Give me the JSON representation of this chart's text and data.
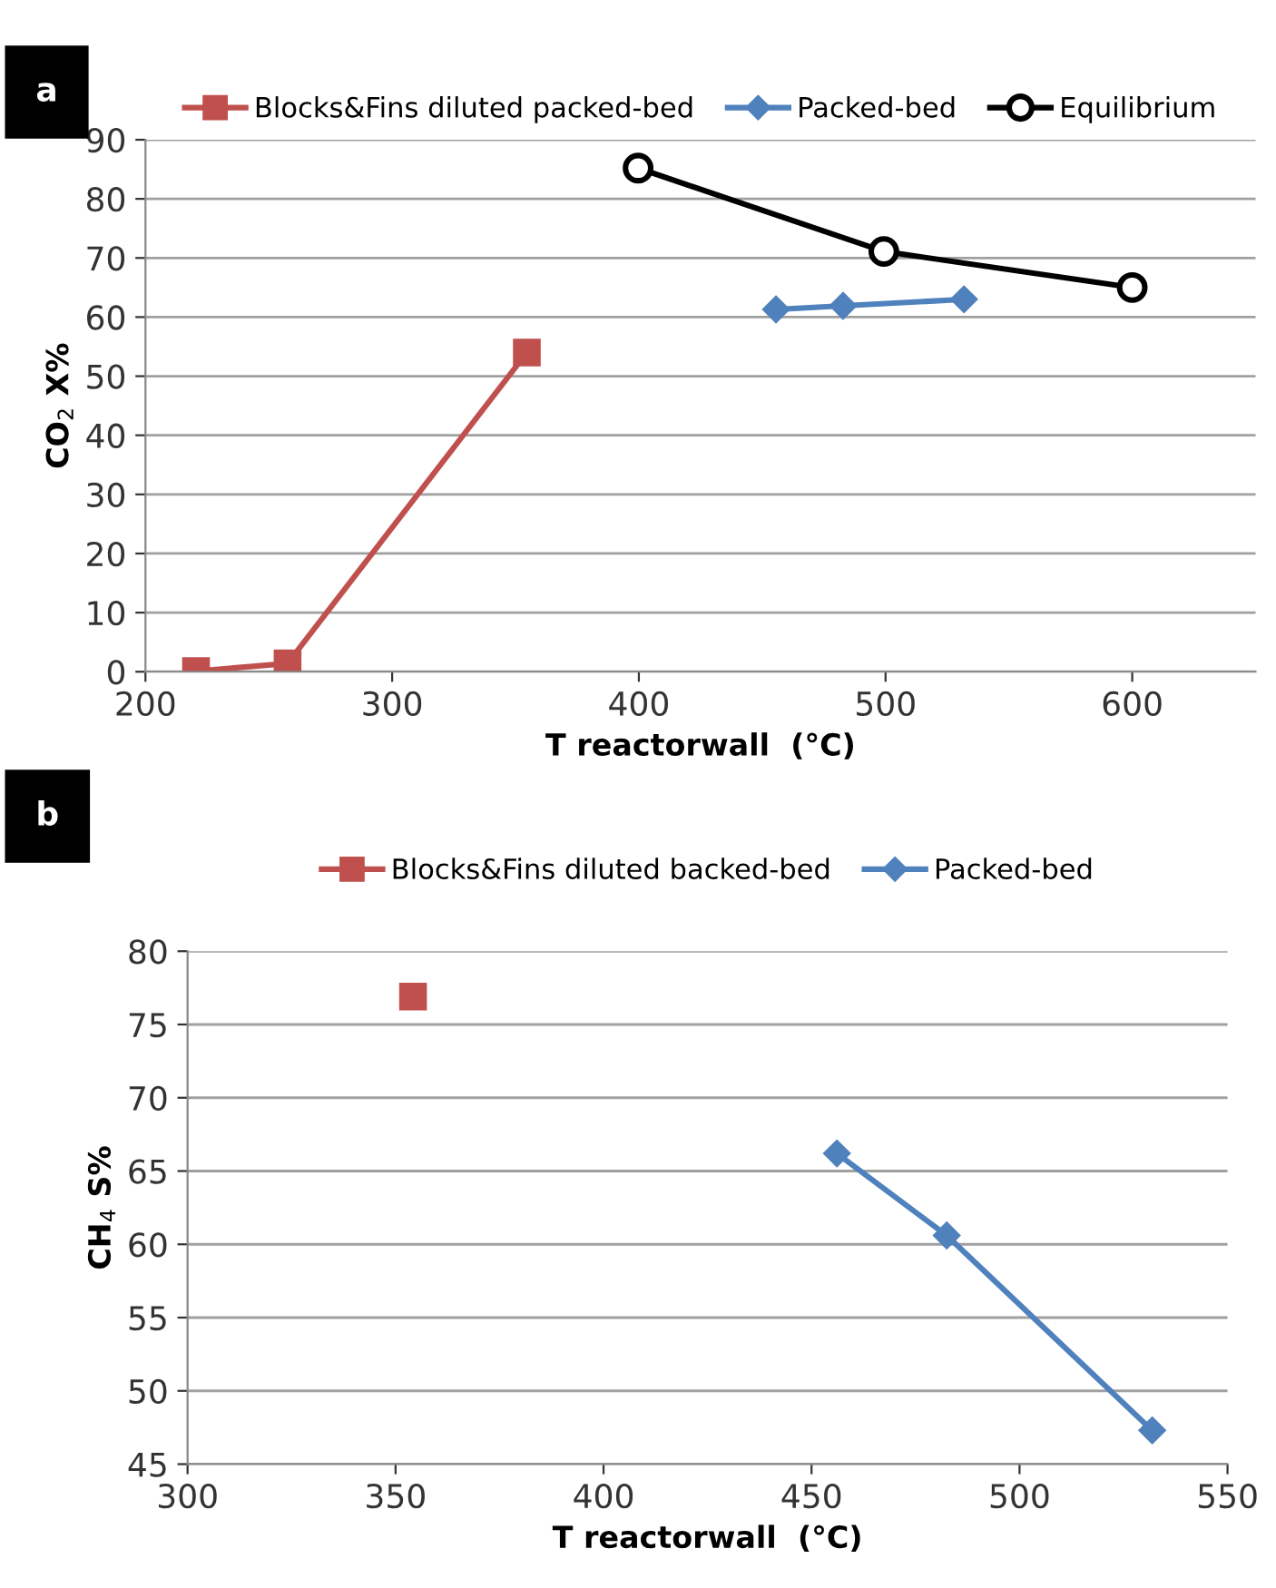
{
  "chart_data": [
    {
      "type": "line",
      "xlabel": "T reactorwall  (°C)",
      "ylabel": "CO$_{2}$ X%",
      "annotations": [
        "a"
      ],
      "xlim": [
        200,
        650
      ],
      "xticks": [
        200,
        300,
        400,
        500,
        600
      ],
      "ylim": [
        0,
        90
      ],
      "yticks": [
        0,
        10,
        20,
        30,
        40,
        50,
        60,
        70,
        80,
        90
      ],
      "grid": "y",
      "legend": "top",
      "line_style": "solid",
      "series": [
        {
          "name": "Blocks&Fins diluted packed-bed",
          "color": "#c0504d",
          "marker": "square",
          "x": [
            220.5,
            257.6,
            354.6
          ],
          "values": [
            0.1,
            1.4,
            54.0
          ]
        },
        {
          "name": "Packed-bed",
          "color": "#4f81bd",
          "marker": "diamond",
          "x": [
            455.6,
            482.8,
            531.8
          ],
          "values": [
            61.3,
            61.9,
            63.0
          ]
        },
        {
          "name": "Equilibrium",
          "color": "#000000",
          "marker": "circle",
          "x": [
            399.7,
            499.3,
            600
          ],
          "values": [
            85.2,
            71.1,
            65.0
          ]
        }
      ]
    },
    {
      "type": "line",
      "xlabel": "T reactorwall  (°C)",
      "ylabel": "CH$_{4}$ S%",
      "annotations": [
        "b"
      ],
      "xlim": [
        300,
        550
      ],
      "xticks": [
        300,
        350,
        400,
        450,
        500,
        550
      ],
      "ylim": [
        45,
        80
      ],
      "yticks": [
        45,
        50,
        55,
        60,
        65,
        70,
        75,
        80
      ],
      "grid": "y",
      "legend": "top",
      "line_style": "solid",
      "series": [
        {
          "name": "Blocks&Fins diluted backed-bed",
          "color": "#c0504d",
          "marker": "square",
          "x": [
            354.2
          ],
          "values": [
            76.9
          ]
        },
        {
          "name": "Packed-bed",
          "color": "#4f81bd",
          "marker": "diamond",
          "x": [
            456.1,
            482.5,
            531.9
          ],
          "values": [
            66.2,
            60.6,
            47.3
          ]
        }
      ]
    }
  ]
}
